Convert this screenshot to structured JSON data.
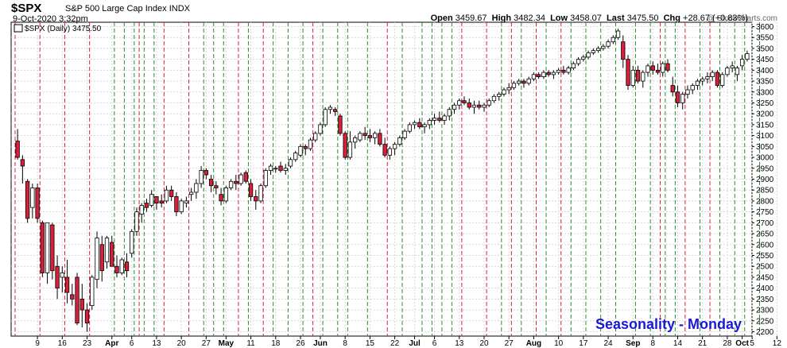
{
  "header": {
    "symbol": "$SPX",
    "description": "S&P 500 Large Cap Index",
    "exchange": "INDX",
    "date": "9-Oct-2020 3:32pm",
    "watermark": "@ StockCharts.com",
    "open_label": "Open",
    "open": "3459.67",
    "high_label": "High",
    "high": "3482.34",
    "low_label": "Low",
    "low": "3458.07",
    "last_label": "Last",
    "last": "3475.50",
    "chg_label": "Chg",
    "chg": "+28.67 (+0.83%)"
  },
  "legend": {
    "text": "$SPX (Daily) 3475.50"
  },
  "annotation": {
    "text": "Seasonality - Monday",
    "color": "#1a1ad6"
  },
  "colors": {
    "up": "#ffffff",
    "down": "#d81f3c",
    "red_line": "#d81f3c",
    "green_line": "#2e8b2e",
    "grid": "#d8d8d8"
  },
  "chart_data": {
    "type": "candlestick",
    "ylim": [
      2180,
      3620
    ],
    "y_ticks": [
      2200,
      2250,
      2300,
      2350,
      2400,
      2450,
      2500,
      2550,
      2600,
      2650,
      2700,
      2750,
      2800,
      2850,
      2900,
      2950,
      3000,
      3050,
      3100,
      3150,
      3200,
      3250,
      3300,
      3350,
      3400,
      3450,
      3500,
      3550,
      3600
    ],
    "x_ticks": [
      {
        "label": "9",
        "i": 4
      },
      {
        "label": "16",
        "i": 9
      },
      {
        "label": "23",
        "i": 14
      },
      {
        "label": "Apr",
        "i": 19
      },
      {
        "label": "6",
        "i": 23
      },
      {
        "label": "13",
        "i": 28
      },
      {
        "label": "20",
        "i": 33
      },
      {
        "label": "27",
        "i": 38
      },
      {
        "label": "May",
        "i": 42
      },
      {
        "label": "11",
        "i": 47
      },
      {
        "label": "18",
        "i": 52
      },
      {
        "label": "26",
        "i": 57
      },
      {
        "label": "Jun",
        "i": 61
      },
      {
        "label": "8",
        "i": 66
      },
      {
        "label": "15",
        "i": 71
      },
      {
        "label": "22",
        "i": 76
      },
      {
        "label": "Jul",
        "i": 80
      },
      {
        "label": "6",
        "i": 84
      },
      {
        "label": "13",
        "i": 89
      },
      {
        "label": "20",
        "i": 94
      },
      {
        "label": "27",
        "i": 99
      },
      {
        "label": "Aug",
        "i": 104
      },
      {
        "label": "10",
        "i": 109
      },
      {
        "label": "17",
        "i": 114
      },
      {
        "label": "24",
        "i": 119
      },
      {
        "label": "Sep",
        "i": 124
      },
      {
        "label": "8",
        "i": 128
      },
      {
        "label": "14",
        "i": 133
      },
      {
        "label": "21",
        "i": 138
      },
      {
        "label": "28",
        "i": 143
      },
      {
        "label": "Oct",
        "i": 146
      },
      {
        "label": "5",
        "i": 148
      },
      {
        "label": "12",
        "i": 153
      }
    ],
    "x_tick_bold": [
      "Apr",
      "May",
      "Jun",
      "Jul",
      "Aug",
      "Sep",
      "Oct"
    ],
    "red_lines": [
      0,
      5,
      10,
      15,
      25,
      30,
      35,
      45,
      50,
      60,
      75,
      90,
      95,
      100,
      105,
      110,
      130,
      135,
      140
    ],
    "green_lines": [
      20,
      22,
      24,
      26,
      28,
      38,
      40,
      42,
      47,
      52,
      55,
      58,
      62,
      65,
      67,
      71,
      78,
      82,
      84,
      86,
      88,
      98,
      102,
      107,
      112,
      115,
      118,
      121,
      125,
      128,
      131,
      133,
      138,
      142,
      145,
      147,
      150
    ],
    "candles": [
      [
        3075,
        3130,
        2990,
        3000
      ],
      [
        2990,
        3010,
        2880,
        2960
      ],
      [
        2890,
        2900,
        2700,
        2720
      ],
      [
        2770,
        2880,
        2720,
        2860
      ],
      [
        2860,
        2880,
        2700,
        2720
      ],
      [
        2700,
        2710,
        2450,
        2470
      ],
      [
        2470,
        2700,
        2420,
        2700
      ],
      [
        2690,
        2700,
        2440,
        2480
      ],
      [
        2500,
        2550,
        2350,
        2400
      ],
      [
        2450,
        2500,
        2380,
        2470
      ],
      [
        2450,
        2530,
        2330,
        2380
      ],
      [
        2370,
        2420,
        2320,
        2350
      ],
      [
        2450,
        2470,
        2230,
        2240
      ],
      [
        2350,
        2420,
        2220,
        2300
      ],
      [
        2300,
        2330,
        2200,
        2240
      ],
      [
        2320,
        2460,
        2300,
        2450
      ],
      [
        2440,
        2660,
        2400,
        2630
      ],
      [
        2600,
        2640,
        2430,
        2480
      ],
      [
        2520,
        2640,
        2490,
        2630
      ],
      [
        2610,
        2640,
        2500,
        2500
      ],
      [
        2500,
        2550,
        2450,
        2470
      ],
      [
        2470,
        2540,
        2460,
        2530
      ],
      [
        2520,
        2560,
        2450,
        2480
      ],
      [
        2560,
        2670,
        2540,
        2660
      ],
      [
        2660,
        2770,
        2640,
        2750
      ],
      [
        2740,
        2790,
        2700,
        2780
      ],
      [
        2790,
        2810,
        2750,
        2770
      ],
      [
        2780,
        2850,
        2770,
        2830
      ],
      [
        2820,
        2820,
        2760,
        2790
      ],
      [
        2800,
        2830,
        2770,
        2790
      ],
      [
        2800,
        2870,
        2790,
        2850
      ],
      [
        2850,
        2870,
        2800,
        2820
      ],
      [
        2820,
        2840,
        2730,
        2750
      ],
      [
        2750,
        2810,
        2740,
        2800
      ],
      [
        2790,
        2820,
        2770,
        2800
      ],
      [
        2830,
        2860,
        2800,
        2840
      ],
      [
        2840,
        2900,
        2810,
        2880
      ],
      [
        2880,
        2960,
        2860,
        2940
      ],
      [
        2940,
        2950,
        2900,
        2920
      ],
      [
        2900,
        2920,
        2840,
        2870
      ],
      [
        2870,
        2890,
        2830,
        2860
      ],
      [
        2830,
        2860,
        2780,
        2800
      ],
      [
        2800,
        2870,
        2790,
        2860
      ],
      [
        2860,
        2900,
        2850,
        2890
      ],
      [
        2890,
        2920,
        2850,
        2880
      ],
      [
        2880,
        2930,
        2870,
        2920
      ],
      [
        2930,
        2940,
        2880,
        2890
      ],
      [
        2880,
        2900,
        2800,
        2820
      ],
      [
        2820,
        2850,
        2760,
        2800
      ],
      [
        2800,
        2880,
        2790,
        2870
      ],
      [
        2870,
        2950,
        2860,
        2940
      ],
      [
        2940,
        2970,
        2920,
        2960
      ],
      [
        2950,
        2960,
        2930,
        2950
      ],
      [
        2960,
        2980,
        2930,
        2940
      ],
      [
        2940,
        2970,
        2920,
        2950
      ],
      [
        2960,
        3000,
        2950,
        2990
      ],
      [
        2990,
        3030,
        2980,
        3020
      ],
      [
        3010,
        3060,
        3000,
        3050
      ],
      [
        3050,
        3060,
        3010,
        3040
      ],
      [
        3040,
        3090,
        3030,
        3080
      ],
      [
        3080,
        3120,
        3070,
        3110
      ],
      [
        3110,
        3160,
        3100,
        3150
      ],
      [
        3150,
        3230,
        3140,
        3220
      ],
      [
        3220,
        3240,
        3200,
        3230
      ],
      [
        3220,
        3230,
        3190,
        3210
      ],
      [
        3190,
        3200,
        3100,
        3110
      ],
      [
        3110,
        3120,
        2990,
        3000
      ],
      [
        3000,
        3120,
        2990,
        3070
      ],
      [
        3070,
        3100,
        3040,
        3090
      ],
      [
        3080,
        3120,
        3070,
        3110
      ],
      [
        3110,
        3140,
        3080,
        3100
      ],
      [
        3100,
        3130,
        3070,
        3090
      ],
      [
        3090,
        3120,
        3060,
        3110
      ],
      [
        3110,
        3130,
        3050,
        3060
      ],
      [
        3060,
        3090,
        3000,
        3010
      ],
      [
        3010,
        3050,
        2990,
        3040
      ],
      [
        3040,
        3070,
        3010,
        3060
      ],
      [
        3060,
        3100,
        3050,
        3090
      ],
      [
        3090,
        3130,
        3080,
        3120
      ],
      [
        3120,
        3160,
        3110,
        3150
      ],
      [
        3150,
        3170,
        3130,
        3160
      ],
      [
        3160,
        3180,
        3130,
        3140
      ],
      [
        3140,
        3160,
        3110,
        3150
      ],
      [
        3150,
        3180,
        3130,
        3170
      ],
      [
        3170,
        3200,
        3150,
        3180
      ],
      [
        3180,
        3210,
        3160,
        3170
      ],
      [
        3170,
        3200,
        3150,
        3190
      ],
      [
        3190,
        3230,
        3170,
        3220
      ],
      [
        3220,
        3250,
        3200,
        3240
      ],
      [
        3240,
        3270,
        3220,
        3260
      ],
      [
        3260,
        3280,
        3240,
        3250
      ],
      [
        3250,
        3270,
        3220,
        3230
      ],
      [
        3230,
        3260,
        3200,
        3240
      ],
      [
        3240,
        3260,
        3220,
        3230
      ],
      [
        3230,
        3250,
        3210,
        3240
      ],
      [
        3240,
        3270,
        3230,
        3260
      ],
      [
        3260,
        3290,
        3250,
        3280
      ],
      [
        3280,
        3300,
        3260,
        3290
      ],
      [
        3290,
        3320,
        3280,
        3310
      ],
      [
        3310,
        3340,
        3290,
        3320
      ],
      [
        3320,
        3350,
        3310,
        3340
      ],
      [
        3340,
        3360,
        3330,
        3350
      ],
      [
        3350,
        3360,
        3320,
        3340
      ],
      [
        3340,
        3370,
        3330,
        3360
      ],
      [
        3360,
        3390,
        3350,
        3380
      ],
      [
        3380,
        3390,
        3360,
        3370
      ],
      [
        3370,
        3400,
        3360,
        3390
      ],
      [
        3390,
        3400,
        3370,
        3380
      ],
      [
        3380,
        3400,
        3360,
        3390
      ],
      [
        3390,
        3410,
        3380,
        3400
      ],
      [
        3400,
        3420,
        3380,
        3390
      ],
      [
        3390,
        3420,
        3380,
        3410
      ],
      [
        3410,
        3440,
        3400,
        3430
      ],
      [
        3430,
        3460,
        3420,
        3450
      ],
      [
        3450,
        3470,
        3440,
        3460
      ],
      [
        3460,
        3490,
        3450,
        3480
      ],
      [
        3480,
        3500,
        3470,
        3490
      ],
      [
        3490,
        3510,
        3480,
        3500
      ],
      [
        3500,
        3520,
        3490,
        3510
      ],
      [
        3510,
        3540,
        3500,
        3530
      ],
      [
        3530,
        3560,
        3520,
        3550
      ],
      [
        3550,
        3590,
        3540,
        3580
      ],
      [
        3530,
        3560,
        3410,
        3450
      ],
      [
        3450,
        3470,
        3310,
        3330
      ],
      [
        3330,
        3420,
        3320,
        3400
      ],
      [
        3400,
        3420,
        3340,
        3350
      ],
      [
        3350,
        3400,
        3320,
        3390
      ],
      [
        3390,
        3430,
        3370,
        3420
      ],
      [
        3420,
        3440,
        3380,
        3400
      ],
      [
        3400,
        3430,
        3380,
        3390
      ],
      [
        3390,
        3440,
        3370,
        3430
      ],
      [
        3430,
        3450,
        3390,
        3400
      ],
      [
        3330,
        3370,
        3280,
        3300
      ],
      [
        3300,
        3330,
        3230,
        3250
      ],
      [
        3250,
        3300,
        3220,
        3290
      ],
      [
        3290,
        3330,
        3270,
        3310
      ],
      [
        3310,
        3340,
        3290,
        3330
      ],
      [
        3330,
        3360,
        3310,
        3350
      ],
      [
        3350,
        3370,
        3330,
        3360
      ],
      [
        3360,
        3390,
        3340,
        3370
      ],
      [
        3370,
        3400,
        3350,
        3390
      ],
      [
        3390,
        3400,
        3320,
        3330
      ],
      [
        3330,
        3390,
        3320,
        3380
      ],
      [
        3380,
        3420,
        3370,
        3410
      ],
      [
        3410,
        3440,
        3390,
        3420
      ],
      [
        3380,
        3420,
        3350,
        3410
      ],
      [
        3420,
        3470,
        3400,
        3450
      ],
      [
        3450,
        3490,
        3440,
        3476
      ]
    ]
  }
}
